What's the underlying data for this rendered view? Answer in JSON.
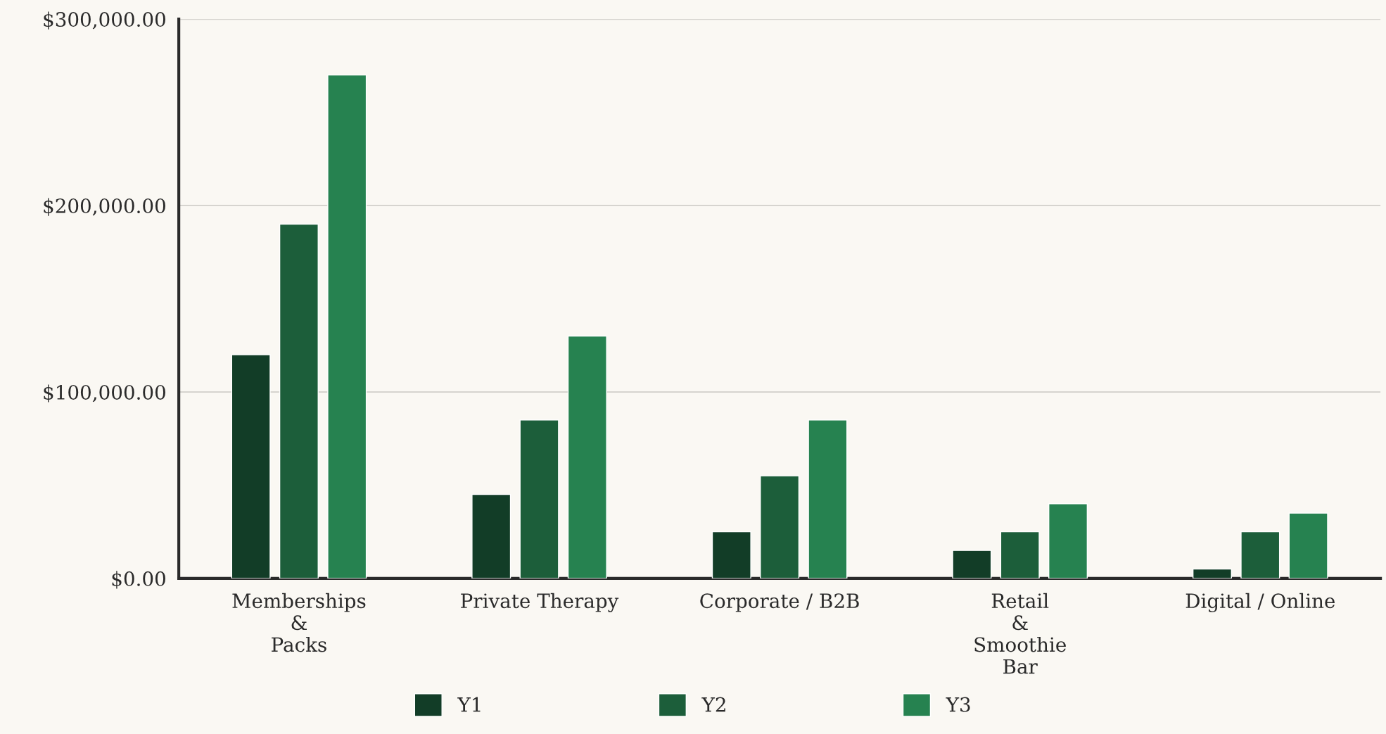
{
  "chart_data": {
    "type": "bar",
    "categories": [
      "Memberships\n&\nPacks",
      "Private Therapy",
      "Corporate / B2B",
      "Retail\n&\nSmoothie\nBar",
      "Digital / Online"
    ],
    "series": [
      {
        "name": "Y1",
        "color": "#123d27",
        "values": [
          120000,
          45000,
          25000,
          15000,
          5000
        ]
      },
      {
        "name": "Y2",
        "color": "#1c5e3a",
        "values": [
          190000,
          85000,
          55000,
          25000,
          25000
        ]
      },
      {
        "name": "Y3",
        "color": "#268250",
        "values": [
          270000,
          130000,
          85000,
          40000,
          35000
        ]
      }
    ],
    "ylim": [
      0,
      300000
    ],
    "yticks": [
      {
        "value": 0,
        "label": "$0.00"
      },
      {
        "value": 100000,
        "label": "$100,000.00"
      },
      {
        "value": 200000,
        "label": "$200,000.00"
      },
      {
        "value": 300000,
        "label": "$300,000.00"
      }
    ],
    "grid": "y",
    "legend": "bottom"
  }
}
